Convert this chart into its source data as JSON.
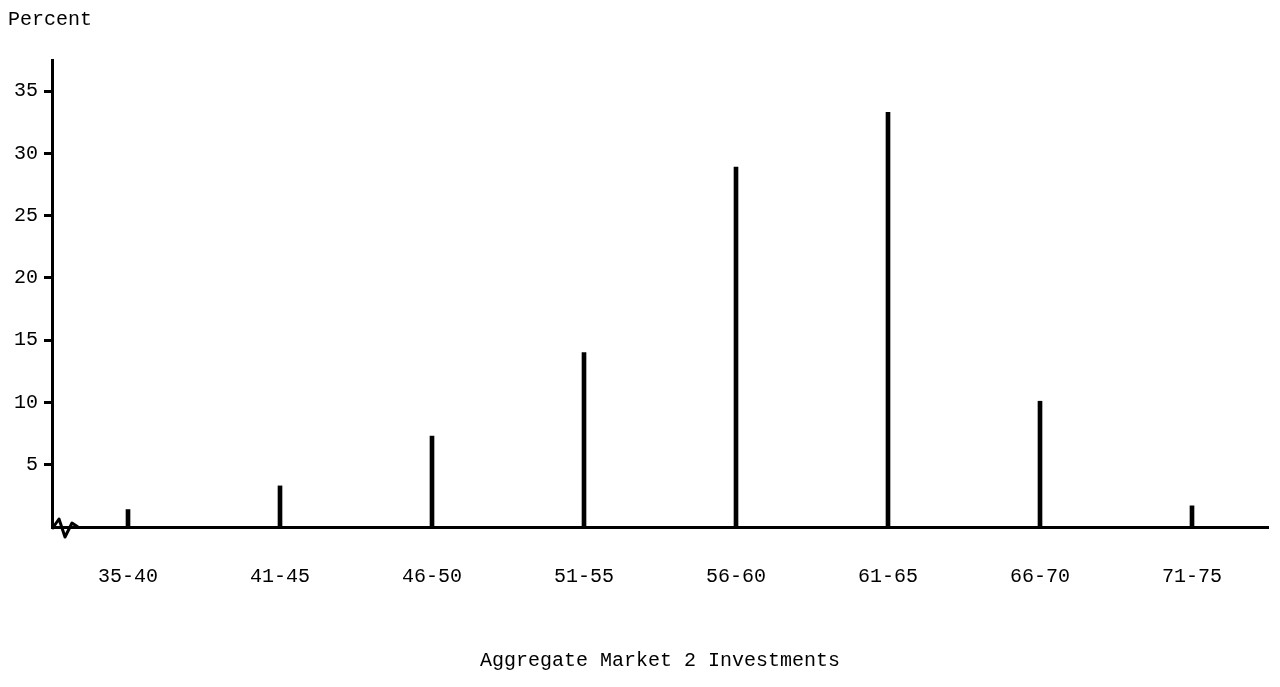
{
  "chart_data": {
    "type": "bar",
    "ylabel": "Percent",
    "xlabel": "Aggregate Market 2 Investments",
    "categories": [
      "35-40",
      "41-45",
      "46-50",
      "51-55",
      "56-60",
      "61-65",
      "66-70",
      "71-75"
    ],
    "values": [
      1.4,
      3.3,
      7.3,
      14.0,
      28.9,
      33.3,
      10.1,
      1.7
    ],
    "color": "#000000",
    "ylim": [
      0,
      37.5
    ],
    "yticks": [
      5,
      10,
      15,
      20,
      25,
      30,
      35
    ],
    "grid": false,
    "legend": false
  }
}
